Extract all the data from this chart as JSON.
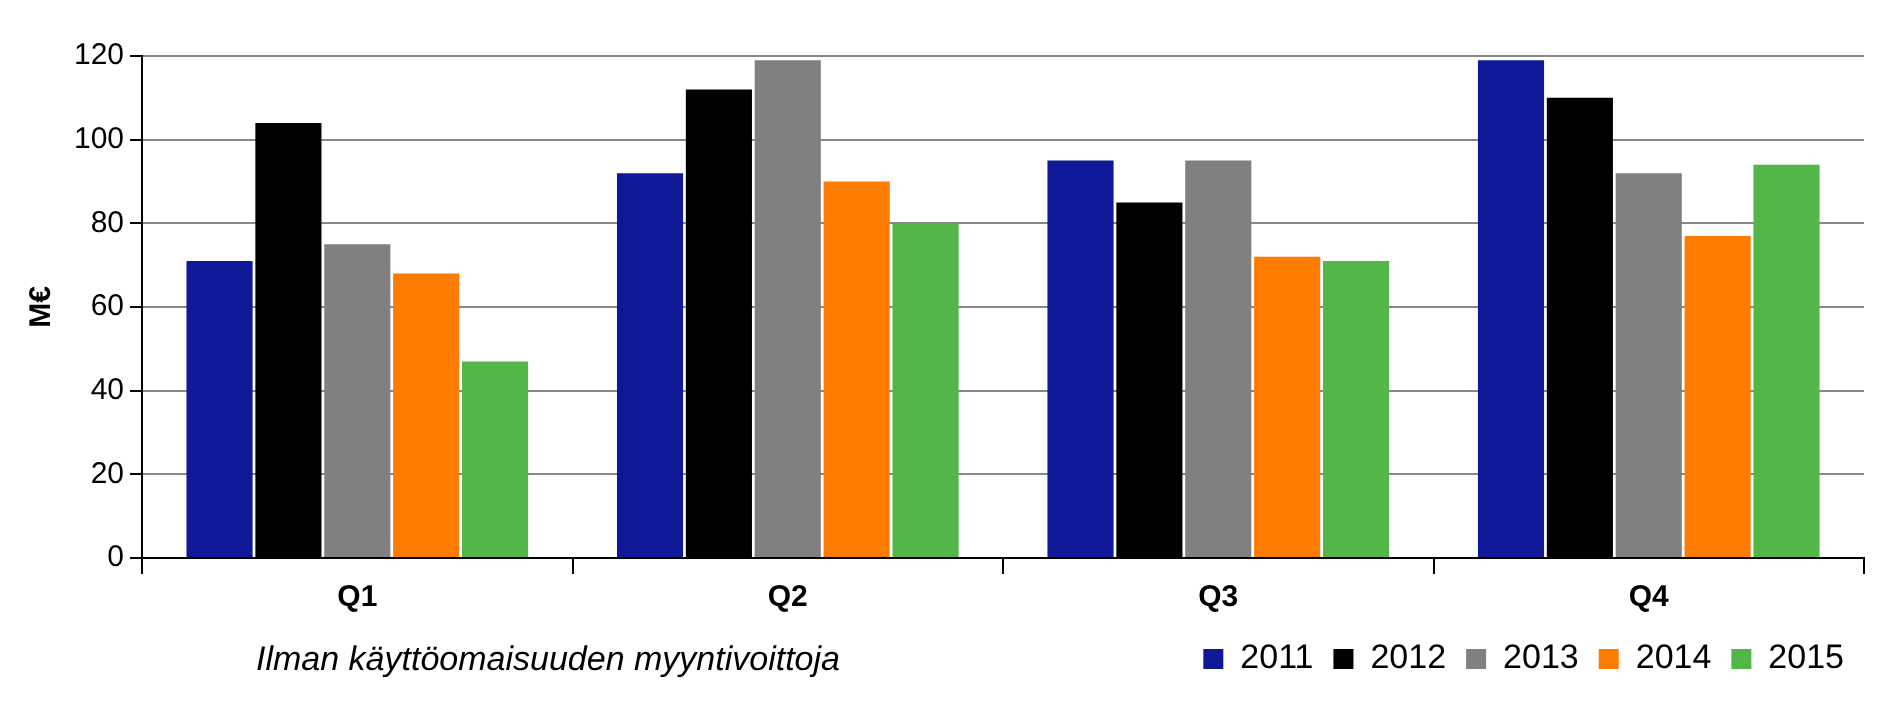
{
  "chart_data": {
    "type": "bar",
    "ylabel": "M€",
    "categories": [
      "Q1",
      "Q2",
      "Q3",
      "Q4"
    ],
    "series": [
      {
        "name": "2011",
        "color": "#0f1896",
        "values": [
          71,
          92,
          95,
          119
        ]
      },
      {
        "name": "2012",
        "color": "#000000",
        "values": [
          104,
          112,
          85,
          110
        ]
      },
      {
        "name": "2013",
        "color": "#808080",
        "values": [
          75,
          119,
          95,
          92
        ]
      },
      {
        "name": "2014",
        "color": "#ff7c00",
        "values": [
          68,
          90,
          72,
          77
        ]
      },
      {
        "name": "2015",
        "color": "#52b648",
        "values": [
          47,
          80,
          71,
          94
        ]
      }
    ],
    "ylim": [
      0,
      120
    ],
    "yticks": [
      0,
      20,
      40,
      60,
      80,
      100,
      120
    ],
    "grid": "y",
    "legend": "bottom right",
    "annotations": [
      "Ilman käyttöomaisuuden myyntivoittoja"
    ]
  }
}
